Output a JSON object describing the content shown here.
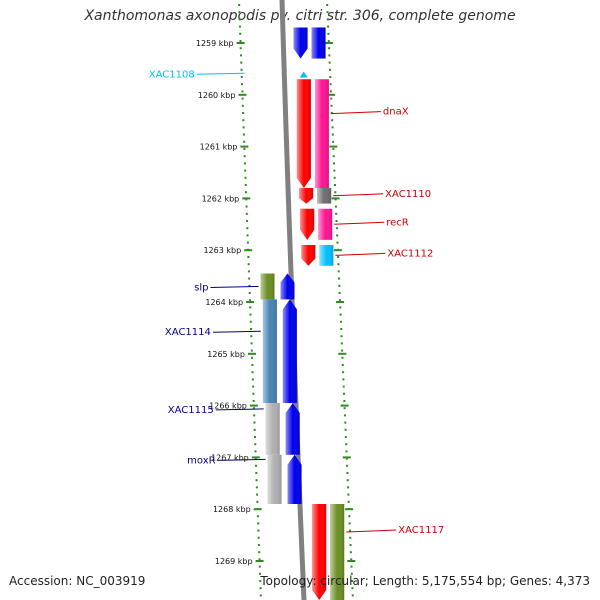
{
  "title": "Xanthomonas axonopodis pv. citri str. 306, complete genome",
  "footer": {
    "accession": "Accession: NC_003919",
    "summary": "Topology: circular; Length: 5,175,554 bp; Genes: 4,373"
  },
  "colors": {
    "backbone": "#808080",
    "tick": "#2e8b1f",
    "blue": "#0000ee",
    "red": "#ff0000",
    "magenta": "#ff1493",
    "olive": "#6b8e23",
    "steel": "#4682b4",
    "gray": "#b0b0b0",
    "cyan": "#00bfff",
    "label_red": "#cc0000",
    "label_blue": "#00008b",
    "label_cyan": "#00bfff"
  },
  "chart_data": {
    "type": "genome-map",
    "range_kbp": [
      1258.7,
      1269.8
    ],
    "tick_labels": [
      {
        "kbp": 1259,
        "label": "1259 kbp"
      },
      {
        "kbp": 1260,
        "label": "1260 kbp"
      },
      {
        "kbp": 1261,
        "label": "1261 kbp"
      },
      {
        "kbp": 1262,
        "label": "1262 kbp"
      },
      {
        "kbp": 1263,
        "label": "1263 kbp"
      },
      {
        "kbp": 1264,
        "label": "1264 kbp"
      },
      {
        "kbp": 1265,
        "label": "1265 kbp"
      },
      {
        "kbp": 1266,
        "label": "1266 kbp"
      },
      {
        "kbp": 1267,
        "label": "1267 kbp"
      },
      {
        "kbp": 1268,
        "label": "1268 kbp"
      },
      {
        "kbp": 1269,
        "label": "1269 kbp"
      }
    ],
    "genes": [
      {
        "label": "",
        "strand": "-",
        "start_kbp": 1258.7,
        "end_kbp": 1259.3,
        "cds": "blue",
        "bar": "blue",
        "side": "right"
      },
      {
        "label": "XAC1108",
        "strand": "-",
        "start_kbp": 1259.55,
        "end_kbp": 1259.62,
        "cds": "cyan",
        "bar": null,
        "side": "left",
        "label_color": "label_cyan"
      },
      {
        "label": "dnaX",
        "strand": "-",
        "start_kbp": 1259.7,
        "end_kbp": 1261.8,
        "cds": "red",
        "bar": "magenta",
        "side": "right",
        "label_color": "label_red"
      },
      {
        "label": "XAC1110",
        "strand": "-",
        "start_kbp": 1261.8,
        "end_kbp": 1262.1,
        "cds": "red",
        "bar": "gray_dark",
        "side": "right",
        "label_color": "label_red"
      },
      {
        "label": "recR",
        "strand": "-",
        "start_kbp": 1262.2,
        "end_kbp": 1262.8,
        "cds": "red",
        "bar": "magenta",
        "side": "right",
        "label_color": "label_red"
      },
      {
        "label": "XAC1112",
        "strand": "-",
        "start_kbp": 1262.9,
        "end_kbp": 1263.3,
        "cds": "red",
        "bar": "cyan",
        "side": "right",
        "label_color": "label_red"
      },
      {
        "label": "slp",
        "strand": "+",
        "start_kbp": 1263.45,
        "end_kbp": 1263.95,
        "cds": "blue",
        "bar": "olive",
        "side": "left",
        "label_color": "label_blue"
      },
      {
        "label": "XAC1114",
        "strand": "+",
        "start_kbp": 1263.95,
        "end_kbp": 1265.95,
        "cds": "blue",
        "bar": "steel",
        "side": "left",
        "label_color": "label_blue"
      },
      {
        "label": "XAC1115",
        "strand": "+",
        "start_kbp": 1265.95,
        "end_kbp": 1266.95,
        "cds": "blue",
        "bar": "gray",
        "side": "left",
        "label_color": "label_blue"
      },
      {
        "label": "moxR",
        "strand": "+",
        "start_kbp": 1266.95,
        "end_kbp": 1267.9,
        "cds": "blue",
        "bar": "gray",
        "side": "left",
        "label_color": "label_blue"
      },
      {
        "label": "XAC1117",
        "strand": "-",
        "start_kbp": 1267.9,
        "end_kbp": 1269.8,
        "cds": "red",
        "bar": "olive",
        "side": "right",
        "label_color": "label_red"
      }
    ]
  }
}
